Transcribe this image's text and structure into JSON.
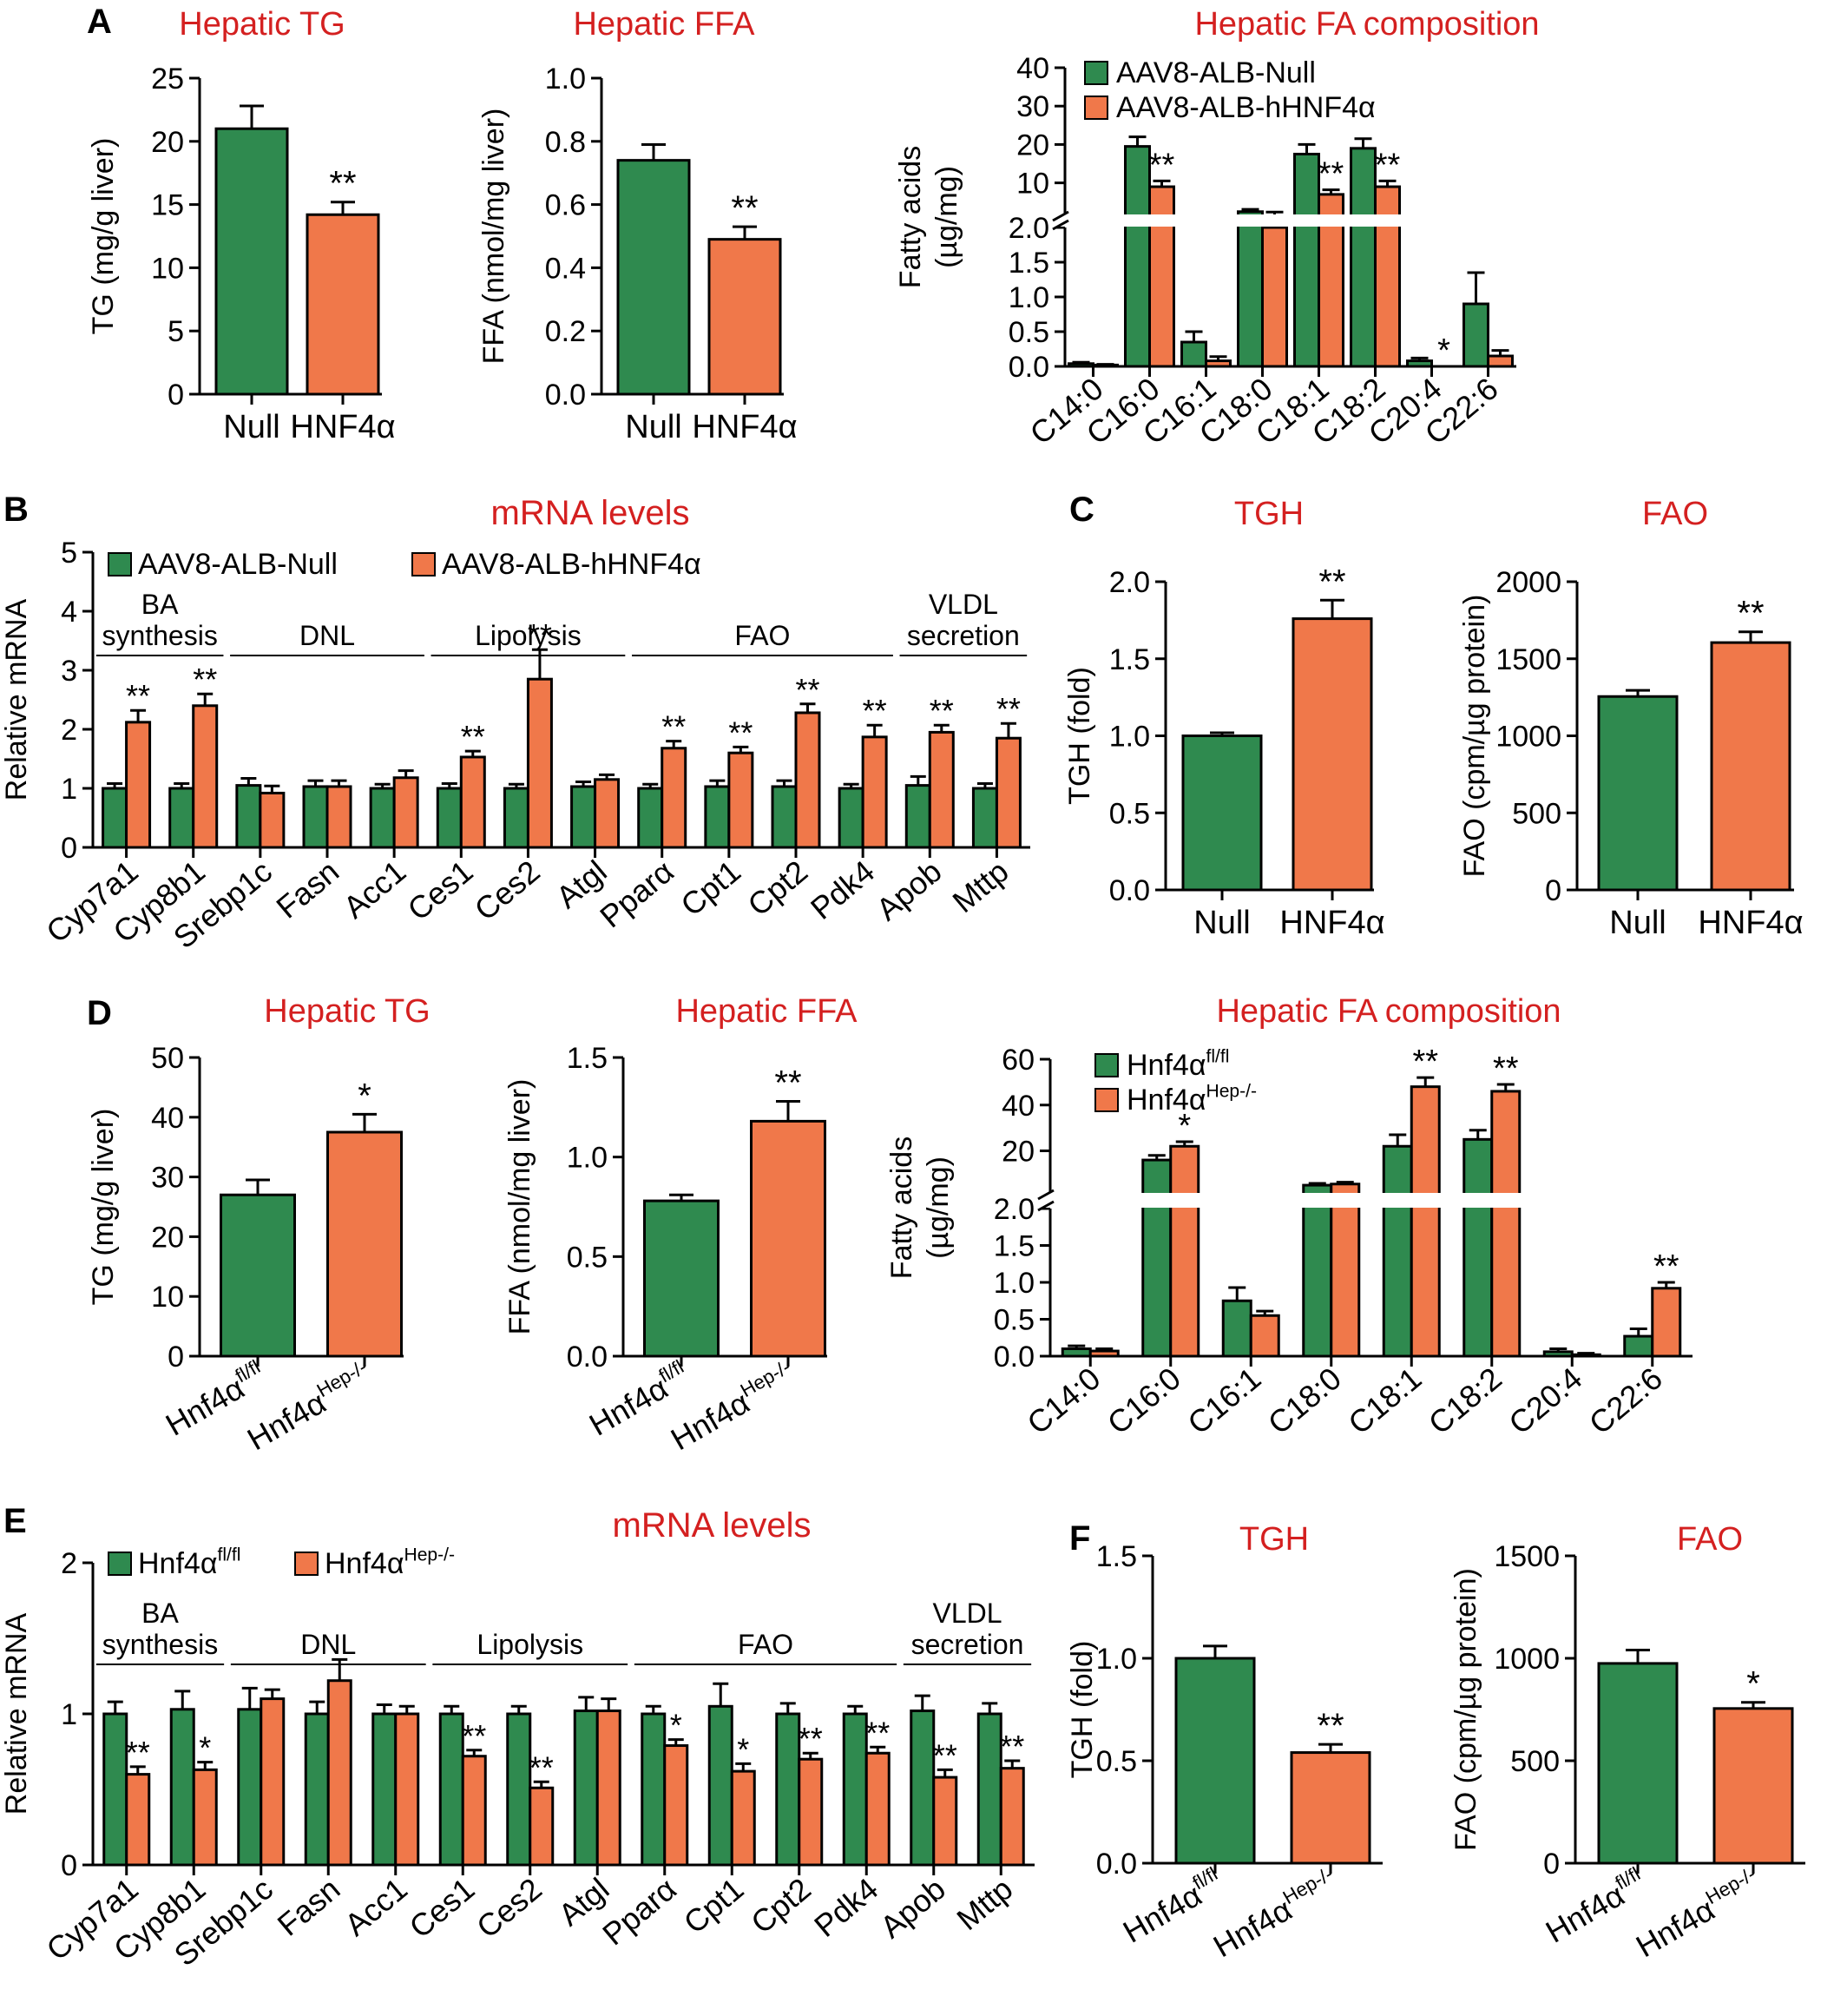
{
  "colors": {
    "green": "#2f8a4f",
    "orange": "#f0784a",
    "title": "#d42020",
    "ink": "#000000"
  },
  "panel_letters": [
    "A",
    "B",
    "C",
    "D",
    "E",
    "F"
  ],
  "chart_data": [
    {
      "id": "A1",
      "panel": "A",
      "type": "bar",
      "title": "Hepatic TG",
      "ylabel": "TG (mg/g liver)",
      "categories": [
        "Null",
        "HNF4α"
      ],
      "values": [
        21.0,
        14.2
      ],
      "errors": [
        1.8,
        1.0
      ],
      "sig": [
        "",
        "**"
      ],
      "ylim": [
        0,
        25
      ],
      "yticks": [
        "0",
        "5",
        "10",
        "15",
        "20",
        "25"
      ]
    },
    {
      "id": "A2",
      "panel": "A",
      "type": "bar",
      "title": "Hepatic FFA",
      "ylabel": "FFA (nmol/mg liver)",
      "categories": [
        "Null",
        "HNF4α"
      ],
      "values": [
        0.74,
        0.49
      ],
      "errors": [
        0.05,
        0.04
      ],
      "sig": [
        "",
        "**"
      ],
      "ylim": [
        0,
        1.0
      ],
      "yticks": [
        "0.0",
        "0.2",
        "0.4",
        "0.6",
        "0.8",
        "1.0"
      ]
    },
    {
      "id": "A3",
      "panel": "A",
      "type": "bar",
      "title": "Hepatic FA composition",
      "ylabel": "Fatty acids\n(µg/mg)",
      "categories": [
        "C14:0",
        "C16:0",
        "C16:1",
        "C18:0",
        "C18:1",
        "C18:2",
        "C20:4",
        "C22:6"
      ],
      "broken_axis": {
        "lower": [
          0,
          2.0
        ],
        "upper": [
          2.0,
          40
        ]
      },
      "yticks_lower": [
        "0.0",
        "0.5",
        "1.0",
        "1.5",
        "2.0"
      ],
      "yticks_upper": [
        "10",
        "20",
        "30",
        "40"
      ],
      "series": [
        {
          "name": "AAV8-ALB-Null",
          "values": [
            0.04,
            19.5,
            0.35,
            2.5,
            17.5,
            19.0,
            0.08,
            0.9
          ],
          "errors": [
            0.02,
            2.5,
            0.15,
            0.6,
            2.5,
            2.5,
            0.04,
            0.45
          ]
        },
        {
          "name": "AAV8-ALB-hHNF4α",
          "values": [
            0.02,
            9.0,
            0.08,
            2.0,
            7.0,
            9.0,
            0.0,
            0.15
          ],
          "errors": [
            0.01,
            1.5,
            0.06,
            0.4,
            1.2,
            1.5,
            0.0,
            0.08
          ]
        }
      ],
      "sig": [
        "",
        "**",
        "",
        "",
        "**",
        "**",
        "*",
        ""
      ]
    },
    {
      "id": "B",
      "panel": "B",
      "type": "bar",
      "title": "mRNA levels",
      "ylabel": "Relative mRNA",
      "categories": [
        "Cyp7a1",
        "Cyp8b1",
        "Srebp1c",
        "Fasn",
        "Acc1",
        "Ces1",
        "Ces2",
        "Atgl",
        "Pparα",
        "Cpt1",
        "Cpt2",
        "Pdk4",
        "Apob",
        "Mttp"
      ],
      "groups": [
        {
          "label": "BA\nsynthesis",
          "from": 0,
          "to": 1
        },
        {
          "label": "DNL",
          "from": 2,
          "to": 4
        },
        {
          "label": "Lipolysis",
          "from": 5,
          "to": 7
        },
        {
          "label": "FAO",
          "from": 8,
          "to": 11
        },
        {
          "label": "VLDL\nsecretion",
          "from": 12,
          "to": 13
        }
      ],
      "ylim": [
        0,
        5
      ],
      "yticks": [
        "0",
        "1",
        "2",
        "3",
        "4",
        "5"
      ],
      "series": [
        {
          "name": "AAV8-ALB-Null",
          "values": [
            1.0,
            1.0,
            1.05,
            1.03,
            1.0,
            1.0,
            1.0,
            1.03,
            1.0,
            1.03,
            1.03,
            1.0,
            1.05,
            1.0
          ],
          "errors": [
            0.08,
            0.08,
            0.12,
            0.1,
            0.07,
            0.08,
            0.07,
            0.08,
            0.07,
            0.1,
            0.1,
            0.07,
            0.15,
            0.08
          ]
        },
        {
          "name": "AAV8-ALB-hHNF4α",
          "values": [
            2.12,
            2.4,
            0.92,
            1.03,
            1.18,
            1.53,
            2.85,
            1.15,
            1.68,
            1.6,
            2.28,
            1.87,
            1.95,
            1.85
          ],
          "errors": [
            0.2,
            0.2,
            0.12,
            0.1,
            0.12,
            0.1,
            0.5,
            0.08,
            0.12,
            0.1,
            0.15,
            0.2,
            0.12,
            0.25
          ]
        }
      ],
      "sig": [
        "**",
        "**",
        "",
        "",
        "",
        "**",
        "**",
        "",
        "**",
        "**",
        "**",
        "**",
        "**",
        "**"
      ]
    },
    {
      "id": "C1",
      "panel": "C",
      "type": "bar",
      "title": "TGH",
      "ylabel": "TGH (fold)",
      "categories": [
        "Null",
        "HNF4α"
      ],
      "values": [
        1.0,
        1.76
      ],
      "errors": [
        0.02,
        0.12
      ],
      "sig": [
        "",
        "**"
      ],
      "ylim": [
        0,
        2.0
      ],
      "yticks": [
        "0.0",
        "0.5",
        "1.0",
        "1.5",
        "2.0"
      ]
    },
    {
      "id": "C2",
      "panel": "C",
      "type": "bar",
      "title": "FAO",
      "ylabel": "FAO (cpm/µg protein)",
      "categories": [
        "Null",
        "HNF4α"
      ],
      "values": [
        1255,
        1605
      ],
      "errors": [
        40,
        70
      ],
      "sig": [
        "",
        "**"
      ],
      "ylim": [
        0,
        2000
      ],
      "yticks": [
        "0",
        "500",
        "1000",
        "1500",
        "2000"
      ]
    },
    {
      "id": "D1",
      "panel": "D",
      "type": "bar",
      "title": "Hepatic TG",
      "ylabel": "TG (mg/g liver)",
      "categories": [
        {
          "base": "Hnf4α",
          "sup": "fl/fl"
        },
        {
          "base": "Hnf4α",
          "sup": "Hep-/-"
        }
      ],
      "values": [
        27.0,
        37.5
      ],
      "errors": [
        2.5,
        3.0
      ],
      "sig": [
        "",
        "*"
      ],
      "ylim": [
        0,
        50
      ],
      "yticks": [
        "0",
        "10",
        "20",
        "30",
        "40",
        "50"
      ]
    },
    {
      "id": "D2",
      "panel": "D",
      "type": "bar",
      "title": "Hepatic FFA",
      "ylabel": "FFA (nmol/mg liver)",
      "categories": [
        {
          "base": "Hnf4α",
          "sup": "fl/fl"
        },
        {
          "base": "Hnf4α",
          "sup": "Hep-/-"
        }
      ],
      "values": [
        0.78,
        1.18
      ],
      "errors": [
        0.03,
        0.1
      ],
      "sig": [
        "",
        "**"
      ],
      "ylim": [
        0,
        1.5
      ],
      "yticks": [
        "0.0",
        "0.5",
        "1.0",
        "1.5"
      ]
    },
    {
      "id": "D3",
      "panel": "D",
      "type": "bar",
      "title": "Hepatic FA composition",
      "ylabel": "Fatty acids\n(µg/mg)",
      "categories": [
        "C14:0",
        "C16:0",
        "C16:1",
        "C18:0",
        "C18:1",
        "C18:2",
        "C20:4",
        "C22:6"
      ],
      "broken_axis": {
        "lower": [
          0,
          2.0
        ],
        "upper": [
          2.0,
          60
        ]
      },
      "yticks_lower": [
        "0.0",
        "0.5",
        "1.0",
        "1.5",
        "2.0"
      ],
      "yticks_upper": [
        "20",
        "40",
        "60"
      ],
      "series": [
        {
          "name": {
            "base": "Hnf4α",
            "sup": "fl/fl"
          },
          "values": [
            0.1,
            16.0,
            0.75,
            5.0,
            22.0,
            25.0,
            0.06,
            0.27
          ],
          "errors": [
            0.04,
            2.0,
            0.18,
            0.8,
            5.0,
            4.0,
            0.04,
            0.1
          ]
        },
        {
          "name": {
            "base": "Hnf4α",
            "sup": "Hep-/-"
          },
          "values": [
            0.07,
            22.0,
            0.55,
            5.5,
            48.0,
            46.0,
            0.02,
            0.92
          ],
          "errors": [
            0.03,
            2.0,
            0.06,
            0.8,
            4.0,
            3.0,
            0.02,
            0.08
          ]
        }
      ],
      "sig": [
        "",
        "*",
        "",
        "",
        "**",
        "**",
        "",
        "**"
      ]
    },
    {
      "id": "E",
      "panel": "E",
      "type": "bar",
      "title": "mRNA levels",
      "ylabel": "Relative mRNA",
      "categories": [
        "Cyp7a1",
        "Cyp8b1",
        "Srebp1c",
        "Fasn",
        "Acc1",
        "Ces1",
        "Ces2",
        "Atgl",
        "Pparα",
        "Cpt1",
        "Cpt2",
        "Pdk4",
        "Apob",
        "Mttp"
      ],
      "groups": [
        {
          "label": "BA\nsynthesis",
          "from": 0,
          "to": 1
        },
        {
          "label": "DNL",
          "from": 2,
          "to": 4
        },
        {
          "label": "Lipolysis",
          "from": 5,
          "to": 7
        },
        {
          "label": "FAO",
          "from": 8,
          "to": 11
        },
        {
          "label": "VLDL\nsecretion",
          "from": 12,
          "to": 13
        }
      ],
      "ylim": [
        0,
        2
      ],
      "yticks": [
        "0",
        "1",
        "2"
      ],
      "series": [
        {
          "name": {
            "base": "Hnf4α",
            "sup": "fl/fl"
          },
          "values": [
            1.0,
            1.03,
            1.03,
            1.0,
            1.0,
            1.0,
            1.0,
            1.02,
            1.0,
            1.05,
            1.0,
            1.0,
            1.02,
            1.0
          ],
          "errors": [
            0.08,
            0.12,
            0.14,
            0.08,
            0.06,
            0.05,
            0.05,
            0.09,
            0.05,
            0.15,
            0.07,
            0.05,
            0.1,
            0.07
          ]
        },
        {
          "name": {
            "base": "Hnf4α",
            "sup": "Hep-/-"
          },
          "values": [
            0.6,
            0.63,
            1.1,
            1.22,
            1.0,
            0.72,
            0.51,
            1.02,
            0.79,
            0.62,
            0.7,
            0.74,
            0.58,
            0.64
          ],
          "errors": [
            0.05,
            0.05,
            0.06,
            0.14,
            0.05,
            0.04,
            0.04,
            0.08,
            0.04,
            0.05,
            0.04,
            0.04,
            0.05,
            0.05
          ]
        }
      ],
      "sig": [
        "**",
        "*",
        "",
        "",
        "",
        "**",
        "**",
        "",
        "*",
        "*",
        "**",
        "**",
        "**",
        "**"
      ]
    },
    {
      "id": "F1",
      "panel": "F",
      "type": "bar",
      "title": "TGH",
      "ylabel": "TGH (fold)",
      "categories": [
        {
          "base": "Hnf4α",
          "sup": "fl/fl"
        },
        {
          "base": "Hnf4α",
          "sup": "Hep-/-"
        }
      ],
      "values": [
        1.0,
        0.54
      ],
      "errors": [
        0.06,
        0.04
      ],
      "sig": [
        "",
        "**"
      ],
      "ylim": [
        0,
        1.5
      ],
      "yticks": [
        "0.0",
        "0.5",
        "1.0",
        "1.5"
      ]
    },
    {
      "id": "F2",
      "panel": "F",
      "type": "bar",
      "title": "FAO",
      "ylabel": "FAO (cpm/µg protein)",
      "categories": [
        {
          "base": "Hnf4α",
          "sup": "fl/fl"
        },
        {
          "base": "Hnf4α",
          "sup": "Hep-/-"
        }
      ],
      "values": [
        975,
        755
      ],
      "errors": [
        65,
        30
      ],
      "sig": [
        "",
        "*"
      ],
      "ylim": [
        0,
        1500
      ],
      "yticks": [
        "0",
        "500",
        "1000",
        "1500"
      ]
    }
  ]
}
